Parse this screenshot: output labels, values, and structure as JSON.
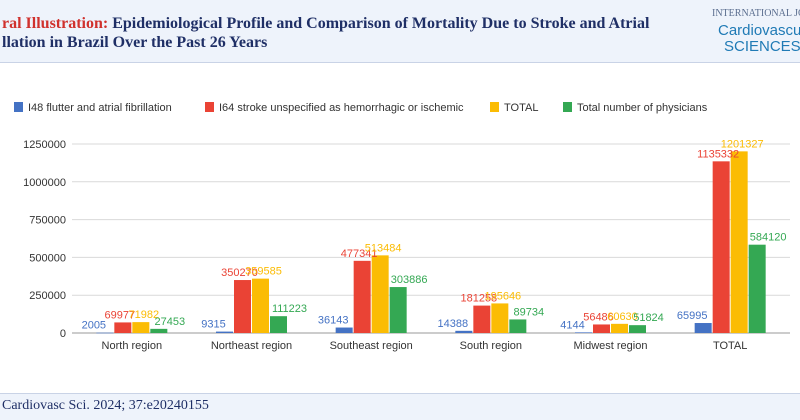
{
  "header": {
    "title_lead": "ral Illustration:",
    "title_rest": " Epidemiological Profile and Comparison of Mortality Due to Stroke and Atrial llation in Brazil Over the Past 26 Years"
  },
  "journal": {
    "top_text": "INTERNATIONAL JOURN",
    "line1": "Cardiovascu",
    "line2": "SCIENCES"
  },
  "footer": {
    "citation": "Cardiovasc Sci. 2024; 37:e20240155"
  },
  "chart_data": {
    "type": "bar",
    "title": "",
    "xlabel": "",
    "ylabel": "",
    "categories": [
      "North region",
      "Northeast region",
      "Southeast region",
      "South region",
      "Midwest region",
      "TOTAL"
    ],
    "series": [
      {
        "name": "I48 flutter and atrial fibrillation",
        "color": "#4472c4",
        "values": [
          2005,
          9315,
          36143,
          14388,
          4144,
          65995
        ]
      },
      {
        "name": "I64 stroke unspecified as hemorrhagic or ischemic",
        "color": "#ea4335",
        "values": [
          69977,
          350270,
          477341,
          181258,
          56486,
          1135332
        ]
      },
      {
        "name": "TOTAL",
        "color": "#fbbc04",
        "values": [
          71982,
          359585,
          513484,
          195646,
          60630,
          1201327
        ]
      },
      {
        "name": "Total number of physicians",
        "color": "#34a853",
        "values": [
          27453,
          111223,
          303886,
          89734,
          51824,
          584120
        ]
      }
    ],
    "ylim": [
      0,
      1250000
    ],
    "yticks": [
      "0",
      "250000",
      "500000",
      "750000",
      "1000000",
      "1250000"
    ],
    "grid": true,
    "legend_position": "top-left"
  }
}
